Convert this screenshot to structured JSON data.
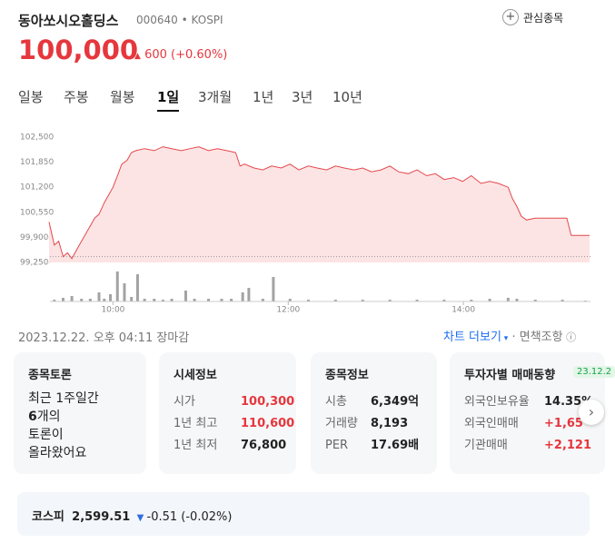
{
  "header": {
    "name": "동아쏘시오홀딩스",
    "code": "000640",
    "market": "KOSPI",
    "watch": "관심종목"
  },
  "price": {
    "value": "100,000",
    "change": "600",
    "change_pct": "(+0.60%)"
  },
  "tabs": [
    "일봉",
    "주봉",
    "월봉",
    "1일",
    "3개월",
    "1년",
    "3년",
    "10년"
  ],
  "selected_tab": 3,
  "chart_data": {
    "type": "line",
    "color": "#e5484d",
    "fill": "#fde4e4",
    "x": [
      9.27,
      9.33,
      9.38,
      9.43,
      9.48,
      9.53,
      9.59,
      9.64,
      9.69,
      9.74,
      9.79,
      9.84,
      9.9,
      9.95,
      10.0,
      10.05,
      10.1,
      10.16,
      10.21,
      10.26,
      10.36,
      10.47,
      10.57,
      10.67,
      10.78,
      10.88,
      10.98,
      11.09,
      11.19,
      11.3,
      11.4,
      11.45,
      11.5,
      11.61,
      11.71,
      11.81,
      11.92,
      12.02,
      12.12,
      12.23,
      12.33,
      12.44,
      12.54,
      12.64,
      12.75,
      12.85,
      12.95,
      13.06,
      13.16,
      13.26,
      13.37,
      13.47,
      13.58,
      13.68,
      13.78,
      13.89,
      13.99,
      14.09,
      14.2,
      14.3,
      14.4,
      14.51,
      14.56,
      14.61,
      14.66,
      14.72,
      14.82,
      14.92,
      15.03,
      15.13,
      15.18,
      15.23,
      15.34,
      15.44
    ],
    "values": [
      100300,
      99700,
      99800,
      99400,
      99500,
      99350,
      99600,
      99800,
      100000,
      100200,
      100400,
      100500,
      100800,
      101000,
      101200,
      101500,
      101800,
      101900,
      102100,
      102150,
      102200,
      102150,
      102250,
      102200,
      102150,
      102200,
      102250,
      102150,
      102200,
      102150,
      102100,
      101750,
      101800,
      101700,
      101650,
      101750,
      101700,
      101800,
      101650,
      101750,
      101700,
      101650,
      101750,
      101700,
      101650,
      101700,
      101600,
      101650,
      101750,
      101600,
      101550,
      101650,
      101500,
      101550,
      101400,
      101450,
      101350,
      101500,
      101300,
      101350,
      101300,
      101200,
      100900,
      100700,
      100450,
      100350,
      100400,
      100400,
      100400,
      100400,
      100400,
      99950,
      99950,
      99950
    ],
    "ylim": [
      99250,
      102500
    ],
    "yticks": [
      {
        "value": 102500,
        "label": "102,500"
      },
      {
        "value": 101850,
        "label": "101,850"
      },
      {
        "value": 101200,
        "label": "101,200"
      },
      {
        "value": 100550,
        "label": "100,550"
      },
      {
        "value": 99900,
        "label": "99,900"
      },
      {
        "value": 99250,
        "label": "99,250"
      }
    ],
    "xlim": [
      9.28,
      15.45
    ],
    "xticks": [
      {
        "value": 10,
        "label": "10:00"
      },
      {
        "value": 12,
        "label": "12:00"
      },
      {
        "value": 14,
        "label": "14:00"
      }
    ],
    "prev_close": 99400,
    "volume": {
      "color": "#a3a3a3",
      "x": [
        9.33,
        9.43,
        9.53,
        9.64,
        9.74,
        9.84,
        9.9,
        9.97,
        10.05,
        10.13,
        10.21,
        10.28,
        10.36,
        10.47,
        10.57,
        10.67,
        10.83,
        10.93,
        11.09,
        11.24,
        11.35,
        11.48,
        11.55,
        11.71,
        11.83,
        12.02,
        12.23,
        12.54,
        12.85,
        13.16,
        13.47,
        13.78,
        14.09,
        14.3,
        14.51,
        14.61,
        14.82,
        15.13,
        15.39
      ],
      "values": [
        2,
        4,
        6,
        3,
        3,
        10,
        3,
        8,
        33,
        20,
        5,
        30,
        3,
        3,
        2,
        3,
        12,
        3,
        3,
        3,
        3,
        10,
        15,
        3,
        27,
        3,
        2,
        2,
        2,
        2,
        2,
        2,
        2,
        3,
        4,
        3,
        2,
        2,
        1
      ]
    }
  },
  "status": "2023.12.22. 오후 04:11 장마감",
  "links": {
    "more": "차트 더보기",
    "disclaimer": "면책조항"
  },
  "cards": [
    {
      "title": "종목토론",
      "lines": [
        "최근 1주일간",
        "6",
        "개의",
        "토론이",
        "올라왔어요"
      ]
    },
    {
      "title": "시세정보",
      "rows": [
        [
          "시가",
          "100,300"
        ],
        [
          "1년 최고",
          "110,600"
        ],
        [
          "1년 최저",
          "76,800"
        ]
      ]
    },
    {
      "title": "종목정보",
      "rows": [
        [
          "시총",
          "6,349억"
        ],
        [
          "거래량",
          "8,193"
        ],
        [
          "PER",
          "17.69배"
        ]
      ]
    },
    {
      "title": "투자자별 매매동향",
      "badge": "23.12.2",
      "rows": [
        [
          "외국인보유율",
          "14.35%"
        ],
        [
          "외국인매매",
          "+1,65"
        ],
        [
          "기관매매",
          "+2,121"
        ]
      ]
    }
  ],
  "index": {
    "name": "코스피",
    "value": "2,599.51",
    "change": "-0.51",
    "change_pct": "(-0.02%)"
  }
}
